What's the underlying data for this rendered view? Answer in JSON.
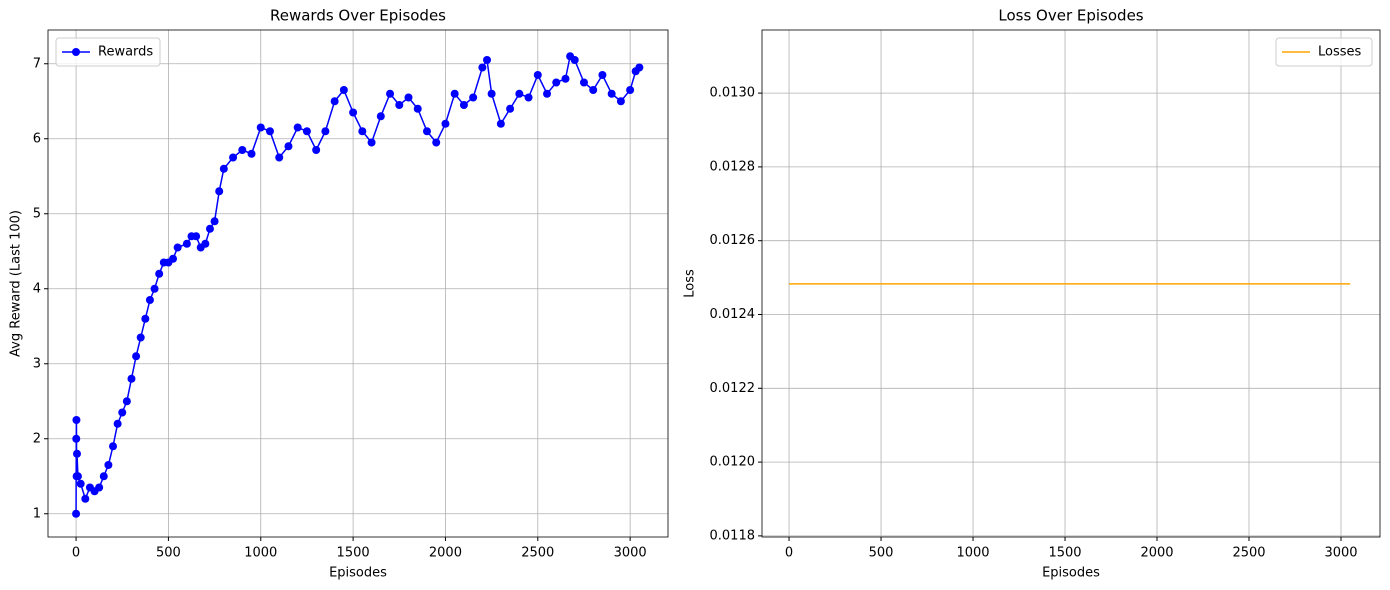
{
  "chart_data": [
    {
      "type": "line",
      "title": "Rewards Over Episodes",
      "x_label": "Episodes",
      "y_label": "Avg Reward (Last 100)",
      "x": [
        0,
        1,
        2,
        3,
        5,
        10,
        25,
        50,
        75,
        100,
        125,
        150,
        175,
        200,
        225,
        250,
        275,
        300,
        325,
        350,
        375,
        400,
        425,
        450,
        475,
        500,
        525,
        550,
        600,
        625,
        650,
        675,
        700,
        725,
        750,
        775,
        800,
        850,
        900,
        950,
        1000,
        1050,
        1100,
        1150,
        1200,
        1250,
        1300,
        1350,
        1400,
        1450,
        1500,
        1550,
        1600,
        1650,
        1700,
        1750,
        1800,
        1850,
        1900,
        1950,
        2000,
        2050,
        2100,
        2150,
        2200,
        2225,
        2250,
        2300,
        2350,
        2400,
        2450,
        2500,
        2550,
        2600,
        2650,
        2675,
        2700,
        2750,
        2800,
        2850,
        2900,
        2950,
        3000,
        3030,
        3050
      ],
      "series": [
        {
          "name": "Rewards",
          "color": "#0000ff",
          "marker": "o",
          "values": [
            1.0,
            2.0,
            2.25,
            1.5,
            1.8,
            1.5,
            1.4,
            1.2,
            1.35,
            1.3,
            1.35,
            1.5,
            1.65,
            1.9,
            2.2,
            2.35,
            2.5,
            2.8,
            3.1,
            3.35,
            3.6,
            3.85,
            4.0,
            4.2,
            4.35,
            4.35,
            4.4,
            4.55,
            4.6,
            4.7,
            4.7,
            4.55,
            4.6,
            4.8,
            4.9,
            5.3,
            5.6,
            5.75,
            5.85,
            5.8,
            6.15,
            6.1,
            5.75,
            5.9,
            6.15,
            6.1,
            5.85,
            6.1,
            6.5,
            6.65,
            6.35,
            6.1,
            5.95,
            6.3,
            6.6,
            6.45,
            6.55,
            6.4,
            6.1,
            5.95,
            6.2,
            6.6,
            6.45,
            6.55,
            6.95,
            7.05,
            6.6,
            6.2,
            6.4,
            6.6,
            6.55,
            6.85,
            6.6,
            6.75,
            6.8,
            7.1,
            7.05,
            6.75,
            6.65,
            6.85,
            6.6,
            6.5,
            6.65,
            6.9,
            6.95
          ]
        }
      ],
      "xlim": [
        -152,
        3205
      ],
      "ylim": [
        0.69,
        7.45
      ],
      "xticks": [
        0,
        500,
        1000,
        1500,
        2000,
        2500,
        3000
      ],
      "yticks": [
        1,
        2,
        3,
        4,
        5,
        6,
        7
      ],
      "grid": true,
      "legend": "upper-left"
    },
    {
      "type": "line",
      "title": "Loss Over Episodes",
      "x_label": "Episodes",
      "y_label": "Loss",
      "x": [
        0,
        3050
      ],
      "series": [
        {
          "name": "Losses",
          "color": "#ffa500",
          "values": [
            0.012483,
            0.012483
          ]
        }
      ],
      "xlim": [
        -147,
        3212
      ],
      "ylim": [
        0.011797,
        0.013171
      ],
      "xticks": [
        0,
        500,
        1000,
        1500,
        2000,
        2500,
        3000
      ],
      "yticks": [
        0.0118,
        {
          "value": 0.012,
          "label": "0.0120"
        },
        0.0122,
        0.0124,
        0.0126,
        0.0128,
        {
          "value": 0.013,
          "label": "0.0130"
        }
      ],
      "grid": true,
      "legend": "upper-right"
    }
  ]
}
